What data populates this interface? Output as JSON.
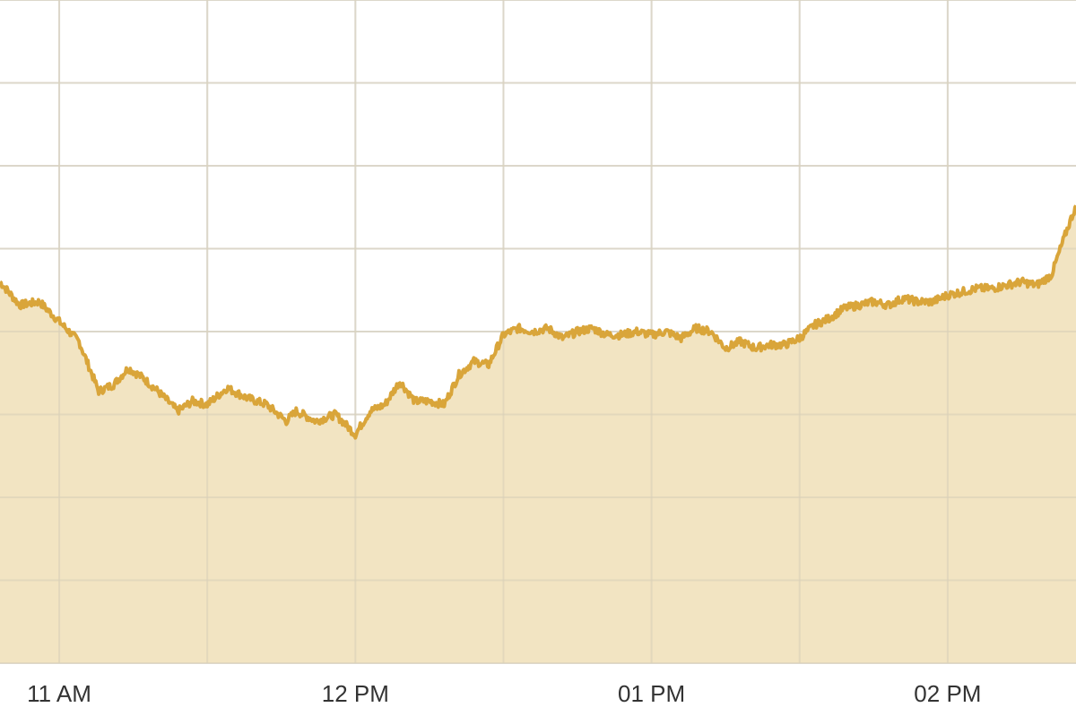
{
  "colors": {
    "background": "#ffffff",
    "grid": "#e0e0e0",
    "line": "#d9a53a",
    "area": "#f1e2bd"
  },
  "chart_data": {
    "type": "area",
    "title": "",
    "xlabel": "",
    "ylabel": "",
    "grid": true,
    "legend": "none",
    "x_tick_labels": [
      "11 AM",
      "12 PM",
      "01 PM",
      "02 PM"
    ],
    "x_ticks_minutes": [
      660,
      720,
      780,
      840
    ],
    "x_range_minutes": [
      648,
      866
    ],
    "y_scale": "relative (no y-axis labels shown)",
    "y_range": [
      0,
      100
    ],
    "series": [
      {
        "x_minutes": [
          648,
          652,
          656,
          658,
          660,
          664,
          668,
          671,
          674,
          677,
          680,
          684,
          687,
          690,
          694,
          698,
          702,
          706,
          708,
          712,
          716,
          720,
          723,
          726,
          729,
          732,
          735,
          738,
          741,
          744,
          747,
          750,
          753,
          756,
          759,
          762,
          765,
          768,
          771,
          774,
          777,
          780,
          783,
          786,
          789,
          792,
          795,
          798,
          801,
          804,
          807,
          810,
          813,
          816,
          819,
          822,
          825,
          828,
          831,
          834,
          837,
          840,
          843,
          846,
          849,
          852,
          855,
          858,
          861,
          864,
          866
        ],
        "y": [
          57.5,
          54.0,
          54.5,
          53.0,
          51.5,
          48.5,
          41.0,
          42.0,
          44.5,
          43.0,
          41.0,
          38.0,
          39.5,
          39.0,
          41.5,
          40.0,
          39.0,
          36.5,
          38.0,
          36.5,
          37.5,
          34.5,
          38.0,
          39.0,
          42.5,
          39.5,
          39.5,
          39.0,
          43.5,
          45.5,
          45.0,
          49.5,
          50.5,
          50.0,
          50.5,
          49.0,
          50.0,
          50.5,
          49.5,
          49.5,
          50.0,
          49.5,
          50.0,
          49.0,
          50.5,
          50.0,
          47.5,
          48.5,
          47.5,
          48.0,
          48.0,
          49.0,
          51.0,
          52.0,
          53.5,
          54.0,
          54.5,
          54.0,
          55.0,
          54.5,
          54.5,
          55.5,
          56.0,
          56.5,
          56.5,
          57.0,
          57.5,
          57.0,
          58.5,
          65.0,
          69.0
        ]
      }
    ]
  }
}
